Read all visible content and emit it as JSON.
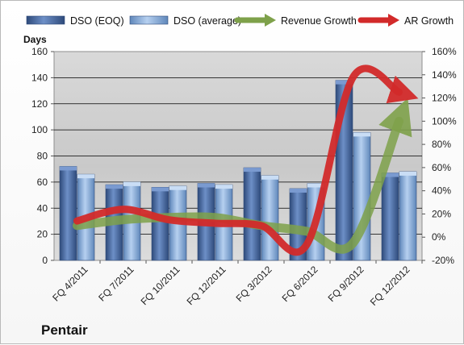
{
  "company": "Pentair",
  "chart_data": {
    "type": "bar",
    "title": "",
    "categories": [
      "FQ 4/2011",
      "FQ 7/2011",
      "FQ 10/2011",
      "FQ 12/2011",
      "FQ 3/2012",
      "FQ 6/2012",
      "FQ 9/2012",
      "FQ 12/2012"
    ],
    "left_axis": {
      "label": "Days",
      "ylim": [
        0,
        160
      ],
      "ticks": [
        "0",
        "20",
        "40",
        "60",
        "80",
        "100",
        "120",
        "140",
        "160"
      ]
    },
    "right_axis": {
      "label": "",
      "ylim": [
        -20,
        160
      ],
      "ticks": [
        "-20%",
        "0%",
        "20%",
        "40%",
        "60%",
        "80%",
        "100%",
        "120%",
        "140%",
        "160%"
      ]
    },
    "series": [
      {
        "name": "DSO (EOQ)",
        "type": "bar",
        "axis": "left",
        "color": "#4f6fa5",
        "values": [
          72,
          58,
          56,
          59,
          71,
          55,
          138,
          67
        ]
      },
      {
        "name": "DSO (average)",
        "type": "bar",
        "axis": "left",
        "color": "#8db1de",
        "values": [
          66,
          60,
          57,
          58,
          65,
          59,
          98,
          68
        ]
      },
      {
        "name": "Revenue Growth",
        "type": "line",
        "axis": "right",
        "color": "#7ea14a",
        "values": [
          10,
          15,
          17,
          17,
          10,
          5,
          -5,
          100
        ]
      },
      {
        "name": "AR Growth",
        "type": "line",
        "axis": "right",
        "color": "#d22a2a",
        "values": [
          14,
          24,
          15,
          12,
          10,
          -6,
          138,
          125
        ]
      }
    ],
    "legend_position": "top",
    "grid": true
  }
}
